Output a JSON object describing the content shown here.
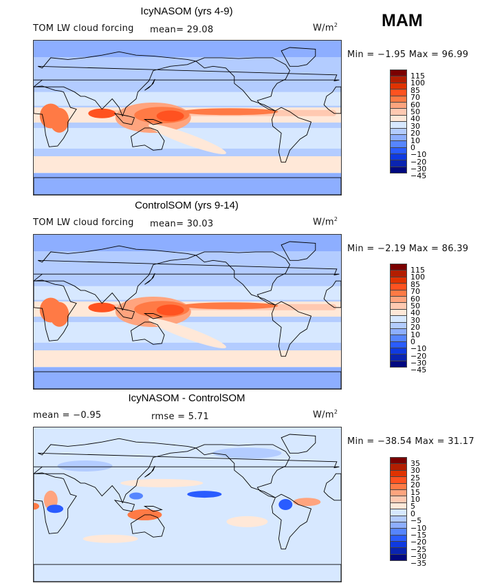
{
  "season": "MAM",
  "units": "W/m",
  "units_sup": "2",
  "panels": [
    {
      "title": "IcyNASOM (yrs 4-9)",
      "left_label": "TOM LW cloud forcing",
      "stat1": "mean=  29.08",
      "stat2": "",
      "minmax": "Min =  −1.95 Max =  96.99",
      "kind": "abs"
    },
    {
      "title": "ControlSOM (yrs 9-14)",
      "left_label": "TOM LW cloud forcing",
      "stat1": "mean=  30.03",
      "stat2": "",
      "minmax": "Min =  −2.19 Max =  86.39",
      "kind": "abs"
    },
    {
      "title": "IcyNASOM - ControlSOM",
      "left_label": "mean =  −0.95",
      "stat1": "rmse =   5.71",
      "stat2": "",
      "minmax": "Min = −38.54 Max =  31.17",
      "kind": "diff"
    }
  ],
  "colorbar_abs": {
    "labels": [
      "115",
      "100",
      "85",
      "70",
      "60",
      "50",
      "40",
      "30",
      "20",
      "10",
      "0",
      "−10",
      "−20",
      "−30",
      "−45"
    ]
  },
  "colorbar_diff": {
    "labels": [
      "35",
      "30",
      "25",
      "20",
      "15",
      "10",
      "5",
      "0",
      "−5",
      "−10",
      "−15",
      "−20",
      "−25",
      "−30",
      "−35"
    ]
  },
  "colors": [
    "#7a0000",
    "#b31e00",
    "#e03300",
    "#ff5220",
    "#ff7a45",
    "#ffa47e",
    "#ffc9b1",
    "#ffe8d8",
    "#d7e8ff",
    "#b3ccff",
    "#8daeff",
    "#5685ff",
    "#2a5cff",
    "#0f3ae0",
    "#0a24b0",
    "#00087f"
  ]
}
